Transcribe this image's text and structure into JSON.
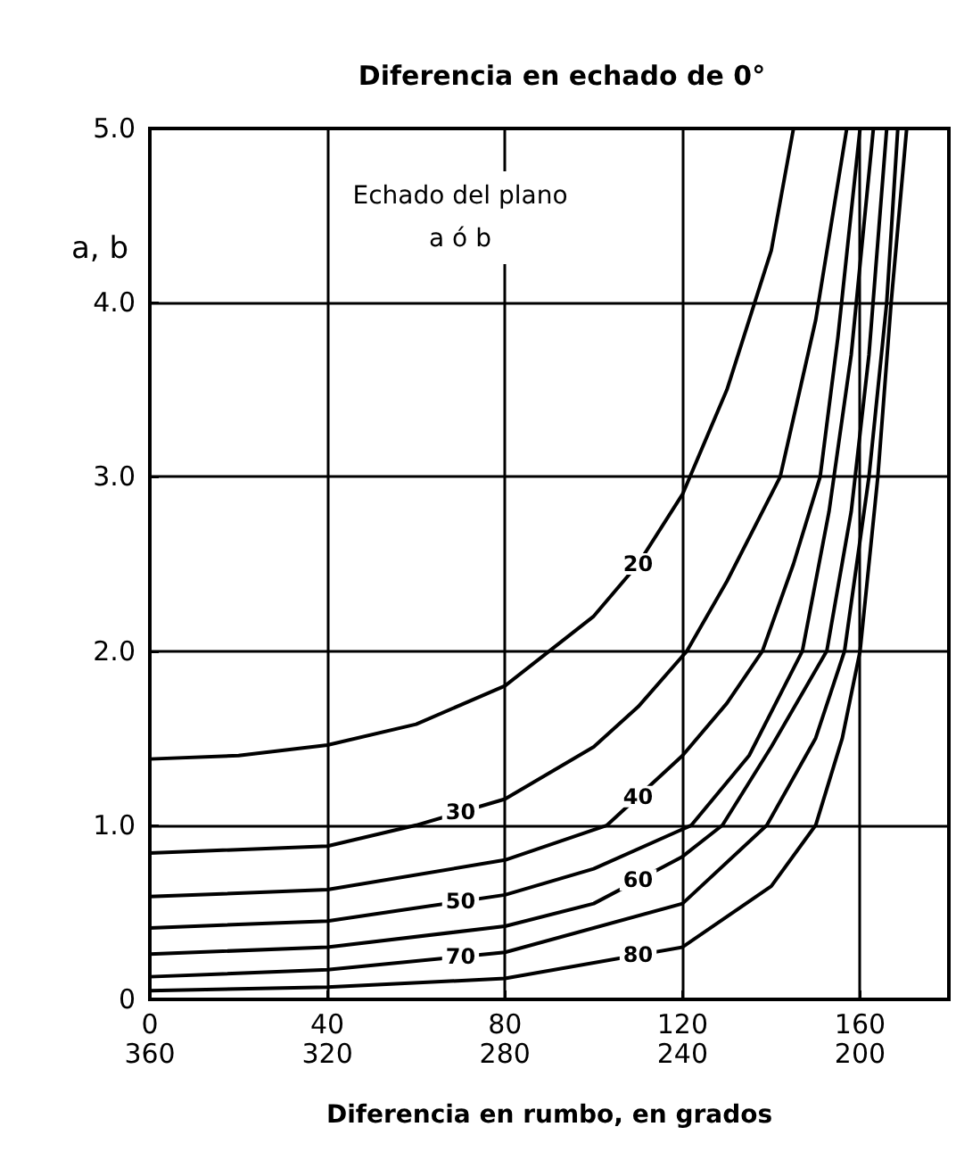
{
  "chart_data": {
    "type": "line",
    "title": "Diferencia en echado de 0°",
    "xlabel": "Diferencia en rumbo, en grados",
    "ylabel": "a, b",
    "annotations": [
      "Echado del plano\na ó b"
    ],
    "xlim": [
      0,
      180
    ],
    "xticks": [
      {
        "value": 0,
        "label": "0"
      },
      {
        "value": 40,
        "label": "40"
      },
      {
        "value": 80,
        "label": "80"
      },
      {
        "value": 120,
        "label": "120"
      },
      {
        "value": 160,
        "label": "160"
      }
    ],
    "x2lim": [
      360,
      180
    ],
    "x2ticks": [
      360,
      320,
      280,
      240,
      200
    ],
    "ylim": [
      0,
      5
    ],
    "yticks": [
      {
        "value": 0,
        "label": "0"
      },
      {
        "value": 1,
        "label": "1.0"
      },
      {
        "value": 2,
        "label": "2.0"
      },
      {
        "value": 3,
        "label": "3.0"
      },
      {
        "value": 4,
        "label": "4.0"
      },
      {
        "value": 5,
        "label": "5.0"
      }
    ],
    "grid": true,
    "marker": "none",
    "line_style": "solid",
    "series": [
      {
        "name": "20",
        "color": "#000000",
        "x": [
          0,
          20,
          40,
          60,
          80,
          90,
          100,
          110,
          120,
          130,
          140,
          145
        ],
        "values": [
          1.38,
          1.4,
          1.46,
          1.58,
          1.8,
          2.0,
          2.2,
          2.5,
          2.9,
          3.5,
          4.3,
          5.0
        ]
      },
      {
        "name": "30",
        "color": "#000000",
        "x": [
          0,
          40,
          60,
          80,
          100,
          110,
          121,
          130,
          142,
          150,
          157
        ],
        "values": [
          0.84,
          0.88,
          1.0,
          1.15,
          1.45,
          1.68,
          2.0,
          2.4,
          3.0,
          3.9,
          5.0
        ]
      },
      {
        "name": "40",
        "color": "#000000",
        "x": [
          0,
          40,
          80,
          103,
          120,
          130,
          138,
          145,
          151,
          155,
          160
        ],
        "values": [
          0.59,
          0.63,
          0.8,
          1.0,
          1.4,
          1.7,
          2.0,
          2.5,
          3.0,
          3.8,
          5.0
        ]
      },
      {
        "name": "50",
        "color": "#000000",
        "x": [
          0,
          40,
          80,
          100,
          122,
          135,
          147,
          153,
          158,
          163
        ],
        "values": [
          0.41,
          0.45,
          0.6,
          0.75,
          1.0,
          1.4,
          2.0,
          2.8,
          3.7,
          5.0
        ]
      },
      {
        "name": "60",
        "color": "#000000",
        "x": [
          0,
          40,
          80,
          100,
          120,
          129,
          140,
          152.5,
          158,
          162,
          166
        ],
        "values": [
          0.26,
          0.3,
          0.42,
          0.55,
          0.82,
          1.0,
          1.45,
          2.0,
          2.8,
          3.7,
          5.0
        ]
      },
      {
        "name": "70",
        "color": "#000000",
        "x": [
          0,
          40,
          80,
          120,
          139,
          150,
          156.5,
          162,
          166,
          168.5
        ],
        "values": [
          0.13,
          0.17,
          0.27,
          0.55,
          1.0,
          1.5,
          2.0,
          3.0,
          4.0,
          5.0
        ]
      },
      {
        "name": "80",
        "color": "#000000",
        "x": [
          0,
          40,
          80,
          120,
          140,
          150,
          156,
          160,
          164,
          167,
          170.5
        ],
        "values": [
          0.05,
          0.07,
          0.12,
          0.3,
          0.65,
          1.0,
          1.5,
          2.0,
          3.0,
          4.0,
          5.0
        ]
      }
    ]
  }
}
